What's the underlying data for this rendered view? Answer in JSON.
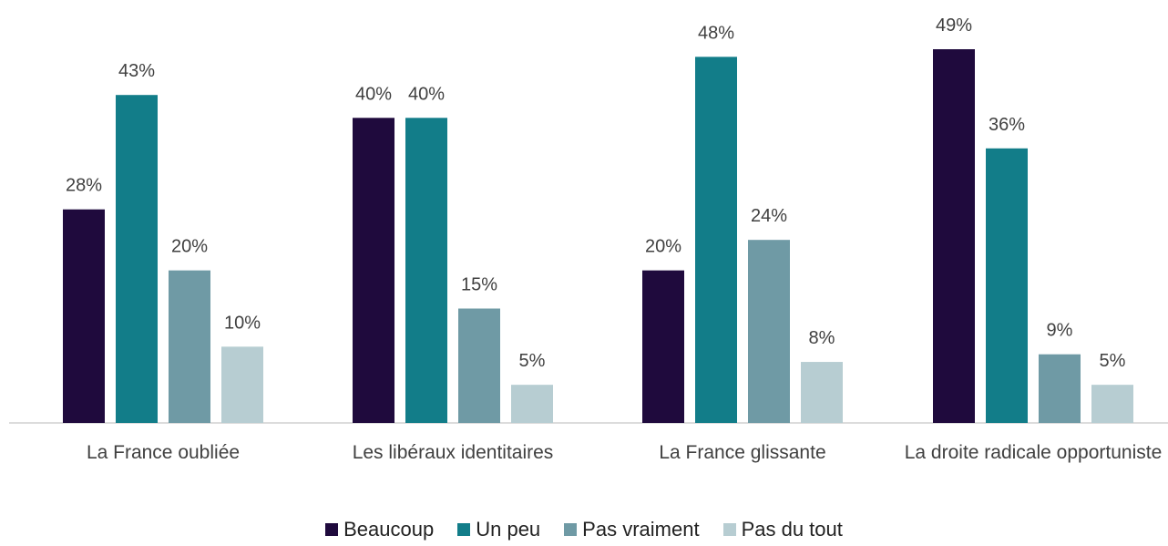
{
  "chart_data": {
    "type": "bar",
    "categories": [
      "La France oubliée",
      "Les libéraux identitaires",
      "La France glissante",
      "La droite radicale opportuniste"
    ],
    "series": [
      {
        "name": "Beaucoup",
        "color": "#1f0a3d",
        "values": [
          28,
          40,
          20,
          49
        ],
        "value_labels": [
          "28%",
          "40%",
          "20%",
          "49%"
        ]
      },
      {
        "name": "Un peu",
        "color": "#127d89",
        "values": [
          43,
          40,
          48,
          36
        ],
        "value_labels": [
          "43%",
          "40%",
          "48%",
          "36%"
        ]
      },
      {
        "name": "Pas vraiment",
        "color": "#6f9aa5",
        "values": [
          20,
          15,
          24,
          9
        ],
        "value_labels": [
          "20%",
          "15%",
          "24%",
          "9%"
        ]
      },
      {
        "name": "Pas du tout",
        "color": "#b7cdd2",
        "values": [
          10,
          5,
          8,
          5
        ],
        "value_labels": [
          "10%",
          "5%",
          "8%",
          "5%"
        ]
      }
    ],
    "legend": "bottom"
  }
}
